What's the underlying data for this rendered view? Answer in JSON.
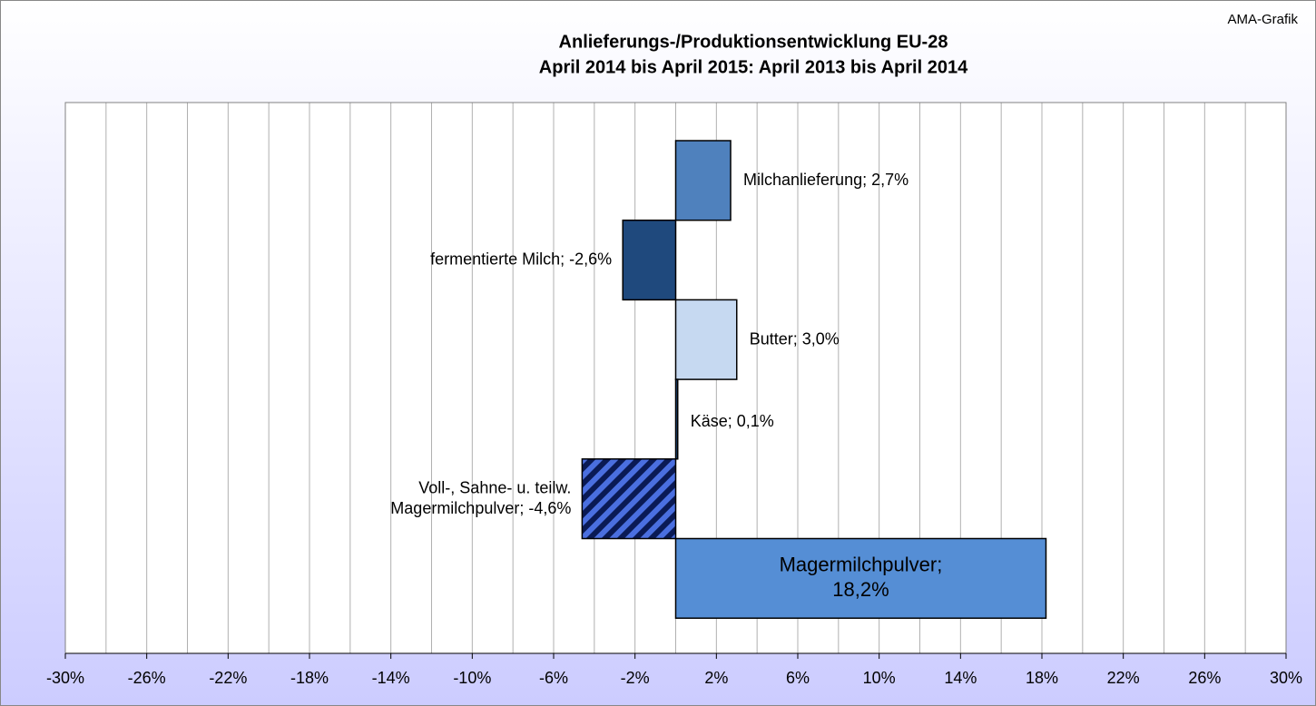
{
  "chart_data": {
    "type": "barh",
    "title": "Anlieferungs-/Produktionsentwicklung EU-28",
    "subtitle": "April 2014 bis April  2015: April 2013 bis April  2014",
    "source": "AMA-Grafik",
    "categories": [
      null,
      null,
      null,
      null,
      null,
      null
    ],
    "values": [
      2.7,
      -2.6,
      3.0,
      0.1,
      -4.6,
      18.2
    ],
    "value_labels": [
      "Milchanlieferung; 2,7%",
      "fermentierte Milch; -2,6%",
      "Butter; 3,0%",
      "Käse; 0,1%",
      "Voll-, Sahne- u. teilw.\nMagermilchpulver; -4,6%",
      "Magermilchpulver;\n18,2%"
    ],
    "colors": [
      "#4f81bd",
      "#1f497d",
      "#c6d9f1",
      "#1f497d",
      "#1f3f9a",
      "#558ed5"
    ],
    "hatch": [
      false,
      false,
      false,
      false,
      true,
      false
    ],
    "xlim": [
      -30,
      30
    ],
    "xticks": [
      {
        "value": -30,
        "label": "-30%"
      },
      {
        "value": -26,
        "label": "-26%"
      },
      {
        "value": -22,
        "label": "-22%"
      },
      {
        "value": -18,
        "label": "-18%"
      },
      {
        "value": -14,
        "label": "-14%"
      },
      {
        "value": -10,
        "label": "-10%"
      },
      {
        "value": -6,
        "label": "-6%"
      },
      {
        "value": -2,
        "label": "-2%"
      },
      {
        "value": 2,
        "label": "2%"
      },
      {
        "value": 6,
        "label": "6%"
      },
      {
        "value": 10,
        "label": "10%"
      },
      {
        "value": 14,
        "label": "14%"
      },
      {
        "value": 18,
        "label": "18%"
      },
      {
        "value": 22,
        "label": "22%"
      },
      {
        "value": 26,
        "label": "26%"
      },
      {
        "value": 30,
        "label": "30%"
      }
    ],
    "xminorticks": [
      -28,
      -24,
      -20,
      -16,
      -12,
      -8,
      -4,
      0,
      4,
      8,
      12,
      16,
      20,
      24,
      28
    ],
    "grid": true
  }
}
